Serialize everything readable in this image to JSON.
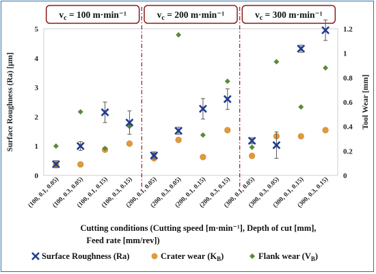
{
  "chart_data": {
    "type": "scatter",
    "categories": [
      "(100, 0.1, 0.05)",
      "(100, 0.3, 0.05)",
      "(100, 0.1, 0.15)",
      "(100, 0.3, 0.15)",
      "(200, 0.1, 0.05)",
      "(200, 0.3, 0.05)",
      "(200, 0.1, 0.15)",
      "(200, 0.3, 0.15)",
      "(300, 0.1, 0.05)",
      "(300, 0.3, 0.05)",
      "(300, 0.1, 0.15)",
      "(300, 0.3, 0.15)"
    ],
    "xlabel_line1": "Cutting conditions (Cutting speed [m·min⁻¹], Depth of cut [mm],",
    "xlabel_line2": "Feed rate [mm/rev])",
    "ylabel_left": "Surface Roughness (Ra) [μm]",
    "ylabel_right": "Tool Wear [mm]",
    "ylim_left": [
      0,
      5
    ],
    "ylim_right": [
      0,
      1.2
    ],
    "yticks_left": [
      "0",
      "1",
      "2",
      "3",
      "4",
      "5"
    ],
    "yticks_right": [
      "0",
      "0.2",
      "0.4",
      "0.6",
      "0.8",
      "1",
      "1.2"
    ],
    "groups": [
      {
        "label_base": "v",
        "label_sub": "c",
        "label_rest": "= 100 m·min⁻¹"
      },
      {
        "label_base": "v",
        "label_sub": "c",
        "label_rest": "= 200 m·min⁻¹"
      },
      {
        "label_base": "v",
        "label_sub": "c",
        "label_rest": "= 300 m·min⁻¹"
      }
    ],
    "series": [
      {
        "name": "Surface Roughness (Ra)",
        "axis": "left",
        "marker": "x",
        "color": "#1f3b8f",
        "values": [
          0.38,
          1.0,
          2.15,
          1.8,
          0.68,
          1.52,
          2.27,
          2.6,
          1.18,
          1.03,
          4.32,
          4.95
        ],
        "errors": [
          0.12,
          0.15,
          0.35,
          0.4,
          0.12,
          0.12,
          0.35,
          0.35,
          0.1,
          0.45,
          0.12,
          0.35
        ]
      },
      {
        "name": "Crater wear (K",
        "name_sub": "B",
        "name_end": ")",
        "axis": "right",
        "marker": "circle",
        "color": "#e09a3a",
        "values": [
          0.09,
          0.09,
          0.21,
          0.26,
          0.14,
          0.29,
          0.15,
          0.37,
          0.16,
          0.32,
          0.32,
          0.37
        ]
      },
      {
        "name": "Flank wear (V",
        "name_sub": "B",
        "name_end": ")",
        "axis": "right",
        "marker": "diamond",
        "color": "#5a8a3a",
        "values": [
          0.24,
          0.52,
          0.22,
          0.4,
          0.17,
          1.15,
          0.33,
          0.77,
          0.23,
          0.93,
          0.56,
          0.88
        ]
      }
    ],
    "grid": false,
    "legend_position": "bottom"
  }
}
